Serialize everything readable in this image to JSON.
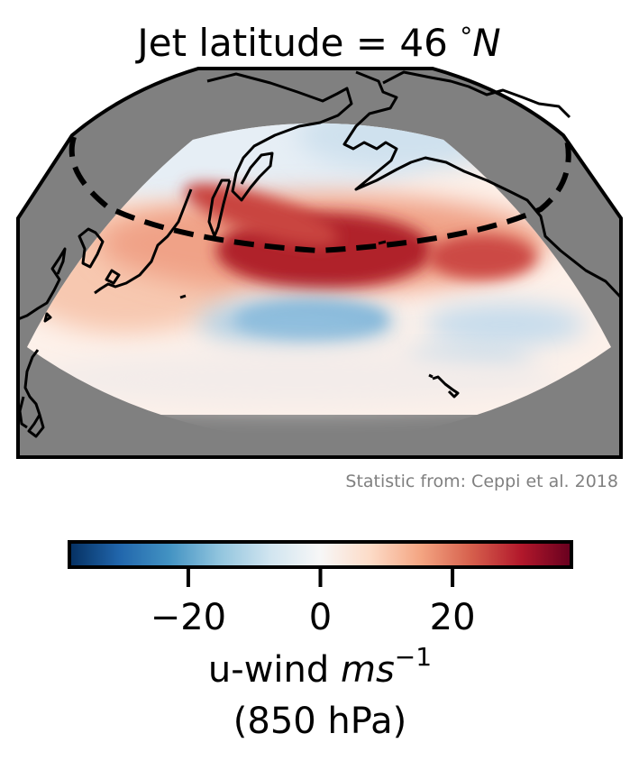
{
  "figure": {
    "title": "Jet latitude = 46 °N",
    "title_prefix": "Jet latitude = 46 ",
    "title_degree": "°",
    "title_unit": "N",
    "attribution": "Statistic from: Ceppi et al. 2018"
  },
  "map": {
    "projection": "polar sector (North Pacific)",
    "jet_latitude_deg_n": 46,
    "jet_line_style": "dashed",
    "land_color": "#808080",
    "coastline_color": "#000000",
    "frame_color": "#000000"
  },
  "colorbar": {
    "colormap": "RdBu_r",
    "range": [
      -38,
      38
    ],
    "ticks": [
      -20,
      0,
      20
    ],
    "tick_labels": [
      "−20",
      "0",
      "20"
    ],
    "label_line1_prefix": "u-wind ",
    "label_line1_math": "ms",
    "label_line1_sup": "−1",
    "label_line2": "(850 hPa)",
    "colors": [
      "#053061",
      "#2166ac",
      "#4393c3",
      "#92c5de",
      "#d1e5f0",
      "#f7f7f7",
      "#fddbc7",
      "#f4a582",
      "#d6604d",
      "#b2182b",
      "#67001f"
    ]
  }
}
